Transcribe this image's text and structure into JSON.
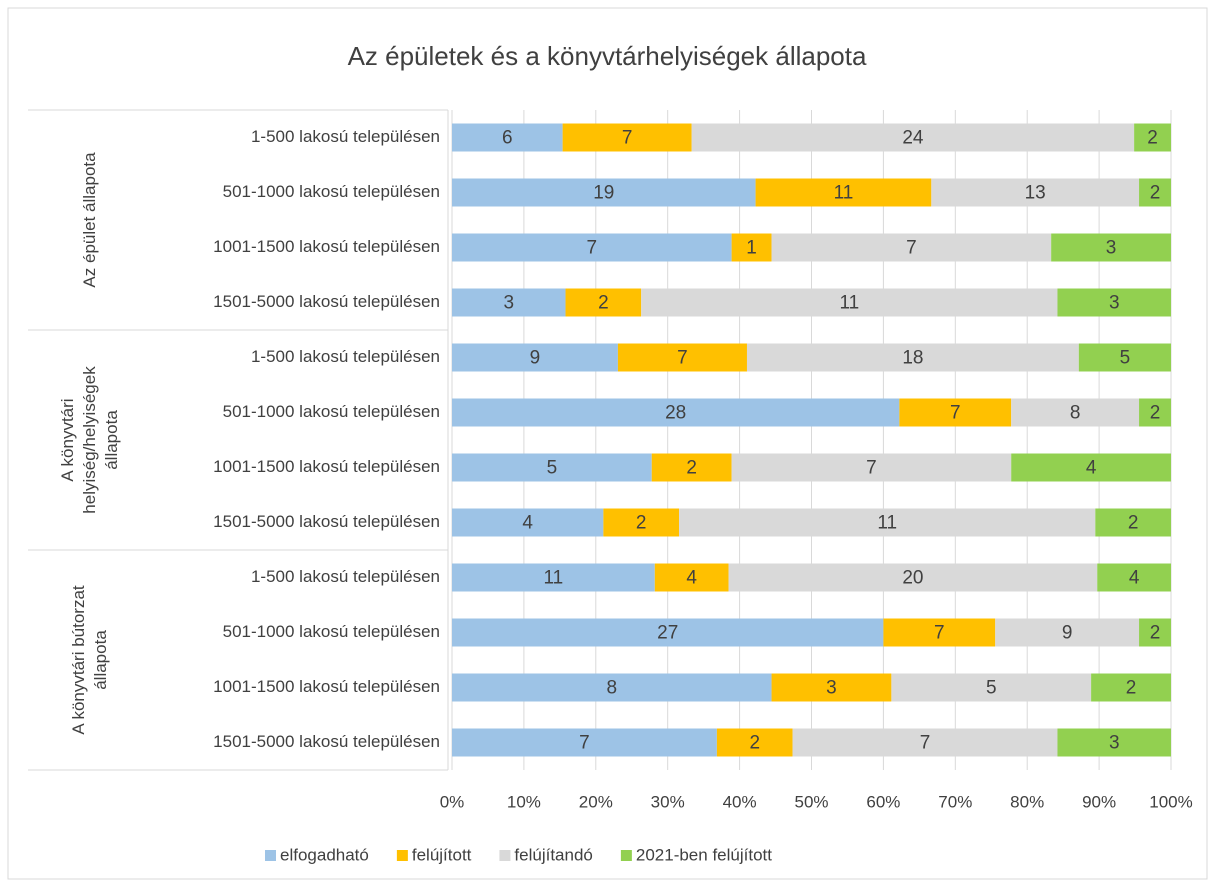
{
  "chart_data": {
    "type": "bar",
    "orientation": "horizontal",
    "stack": "percent",
    "title": "Az épületek és a könyvtárhelyiségek állapota",
    "groups": [
      {
        "name": "Az épület állapota",
        "categories": [
          "1-500 lakosú településen",
          "501-1000 lakosú településen",
          "1001-1500 lakosú településen",
          "1501-5000 lakosú településen"
        ]
      },
      {
        "name": "A könyvtári helyiség/helyiségek állapota",
        "categories": [
          "1-500 lakosú településen",
          "501-1000 lakosú településen",
          "1001-1500 lakosú településen",
          "1501-5000 lakosú településen"
        ]
      },
      {
        "name": "A könyvtári bútorzat állapota",
        "categories": [
          "1-500 lakosú településen",
          "501-1000 lakosú településen",
          "1001-1500 lakosú településen",
          "1501-5000 lakosú településen"
        ]
      }
    ],
    "series": [
      {
        "name": "elfogadható",
        "color": "#9dc3e6",
        "values": [
          6,
          19,
          7,
          3,
          9,
          28,
          5,
          4,
          11,
          27,
          8,
          7
        ]
      },
      {
        "name": "felújított",
        "color": "#ffc000",
        "values": [
          7,
          11,
          1,
          2,
          7,
          7,
          2,
          2,
          4,
          7,
          3,
          2
        ]
      },
      {
        "name": "felújítandó",
        "color": "#d9d9d9",
        "values": [
          24,
          13,
          7,
          11,
          18,
          8,
          7,
          11,
          20,
          9,
          5,
          7
        ]
      },
      {
        "name": "2021-ben felújított",
        "color": "#92d050",
        "values": [
          2,
          2,
          3,
          3,
          5,
          2,
          4,
          2,
          4,
          2,
          2,
          3
        ]
      }
    ],
    "xlim": [
      0,
      100
    ],
    "xticks": [
      {
        "value": 0,
        "label": "0%"
      },
      {
        "value": 10,
        "label": "10%"
      },
      {
        "value": 20,
        "label": "20%"
      },
      {
        "value": 30,
        "label": "30%"
      },
      {
        "value": 40,
        "label": "40%"
      },
      {
        "value": 50,
        "label": "50%"
      },
      {
        "value": 60,
        "label": "60%"
      },
      {
        "value": 70,
        "label": "70%"
      },
      {
        "value": 80,
        "label": "80%"
      },
      {
        "value": 90,
        "label": "90%"
      },
      {
        "value": 100,
        "label": "100%"
      }
    ],
    "grid": true,
    "legend": "bottom"
  }
}
